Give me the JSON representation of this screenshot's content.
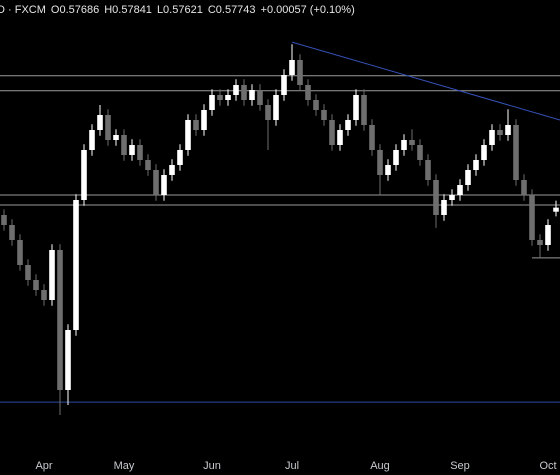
{
  "chart_data": {
    "type": "candlestick",
    "header": {
      "symbol": "D · FXCM",
      "fields": [
        "O0.57686",
        "H0.57841",
        "L0.57621",
        "C0.57743",
        "+0.00057 (+0.10%)"
      ]
    },
    "categories": [
      null,
      null,
      null,
      null,
      null,
      "Apr",
      null,
      null,
      null,
      null,
      null,
      null,
      null,
      null,
      null,
      "May",
      null,
      null,
      null,
      null,
      null,
      null,
      null,
      null,
      null,
      null,
      "Jun",
      null,
      null,
      null,
      null,
      null,
      null,
      null,
      null,
      null,
      "Jul",
      null,
      null,
      null,
      null,
      null,
      null,
      null,
      null,
      null,
      null,
      "Aug",
      null,
      null,
      null,
      null,
      null,
      null,
      null,
      null,
      null,
      "Sep",
      null,
      null,
      null,
      null,
      null,
      null,
      null,
      null,
      null,
      null,
      "Oct",
      null
    ],
    "open": [
      0.5764,
      0.575,
      0.5729,
      0.5694,
      0.5673,
      0.5659,
      0.5645,
      0.5715,
      0.5519,
      0.5603,
      0.5785,
      0.5855,
      0.5883,
      0.5904,
      0.5869,
      0.5876,
      0.5848,
      0.5862,
      0.5841,
      0.5827,
      0.5792,
      0.582,
      0.5834,
      0.5855,
      0.5897,
      0.5883,
      0.5911,
      0.5932,
      0.5925,
      0.5932,
      0.5946,
      0.5925,
      0.5939,
      0.5918,
      0.5897,
      0.5932,
      0.596,
      0.5981,
      0.5946,
      0.5925,
      0.5911,
      0.5897,
      0.5862,
      0.5883,
      0.5897,
      0.5932,
      0.589,
      0.5855,
      0.582,
      0.5834,
      0.5855,
      0.5869,
      0.5862,
      0.5841,
      0.5813,
      0.5764,
      0.5785,
      0.5792,
      0.5806,
      0.5827,
      0.5841,
      0.5862,
      0.5883,
      0.5876,
      0.589,
      0.5813,
      0.5792,
      0.5729,
      0.5722,
      0.57686
    ],
    "high": [
      0.5772,
      0.5758,
      0.5737,
      0.5702,
      0.5681,
      0.5667,
      0.5723,
      0.5723,
      0.5611,
      0.5793,
      0.5863,
      0.5891,
      0.5918,
      0.5912,
      0.5884,
      0.5884,
      0.587,
      0.587,
      0.5849,
      0.5835,
      0.5828,
      0.5842,
      0.5863,
      0.5905,
      0.5905,
      0.5919,
      0.594,
      0.594,
      0.594,
      0.5954,
      0.5954,
      0.5947,
      0.5947,
      0.5926,
      0.594,
      0.5968,
      0.6003,
      0.5989,
      0.5954,
      0.5933,
      0.5919,
      0.5905,
      0.5891,
      0.5905,
      0.594,
      0.594,
      0.5898,
      0.5863,
      0.5842,
      0.5863,
      0.5877,
      0.5884,
      0.587,
      0.5849,
      0.5821,
      0.5793,
      0.58,
      0.5814,
      0.5835,
      0.5849,
      0.587,
      0.5891,
      0.5891,
      0.5912,
      0.5898,
      0.5821,
      0.58,
      0.5737,
      0.5758,
      0.57841
    ],
    "low": [
      0.5742,
      0.5721,
      0.5686,
      0.5665,
      0.5651,
      0.5637,
      0.5637,
      0.5484,
      0.5498,
      0.5595,
      0.5777,
      0.5847,
      0.5875,
      0.5861,
      0.5861,
      0.584,
      0.584,
      0.5833,
      0.5819,
      0.5784,
      0.5784,
      0.5812,
      0.5826,
      0.5847,
      0.5875,
      0.5875,
      0.5903,
      0.5917,
      0.5917,
      0.5924,
      0.5917,
      0.5917,
      0.591,
      0.5855,
      0.5889,
      0.5924,
      0.5952,
      0.5938,
      0.5917,
      0.5903,
      0.5889,
      0.5854,
      0.5854,
      0.5875,
      0.5889,
      0.5882,
      0.5847,
      0.5792,
      0.5812,
      0.5826,
      0.5847,
      0.5854,
      0.5833,
      0.5805,
      0.5746,
      0.5756,
      0.5777,
      0.5784,
      0.5798,
      0.5819,
      0.5833,
      0.5854,
      0.5868,
      0.5868,
      0.5805,
      0.5784,
      0.5721,
      0.5703,
      0.5714,
      0.57621
    ],
    "close": [
      0.575,
      0.5729,
      0.5694,
      0.5673,
      0.5659,
      0.5645,
      0.5715,
      0.5519,
      0.5603,
      0.5785,
      0.5855,
      0.5883,
      0.5904,
      0.5869,
      0.5876,
      0.5848,
      0.5862,
      0.5841,
      0.5827,
      0.5792,
      0.582,
      0.5834,
      0.5855,
      0.5897,
      0.5883,
      0.5911,
      0.5932,
      0.5925,
      0.5932,
      0.5946,
      0.5925,
      0.5939,
      0.5918,
      0.5897,
      0.5932,
      0.596,
      0.5981,
      0.5946,
      0.5925,
      0.5911,
      0.5897,
      0.5862,
      0.5883,
      0.5897,
      0.5932,
      0.589,
      0.5855,
      0.582,
      0.5834,
      0.5855,
      0.5869,
      0.5862,
      0.5841,
      0.5813,
      0.5764,
      0.5785,
      0.5792,
      0.5806,
      0.5827,
      0.5841,
      0.5862,
      0.5883,
      0.5876,
      0.589,
      0.5813,
      0.5792,
      0.5729,
      0.5722,
      0.575,
      0.57743
    ],
    "up_color": "#ffffff",
    "down_color": "#6e6e6e",
    "ylim": [
      0.5428,
      0.6065
    ],
    "hlines": [
      {
        "y": 0.5959,
        "color": "#9a9a9a"
      },
      {
        "y": 0.5938,
        "color": "#9a9a9a"
      },
      {
        "y": 0.5792,
        "color": "#9a9a9a"
      },
      {
        "y": 0.5778,
        "color": "#9a9a9a"
      },
      {
        "y": 0.5502,
        "color": "#2f4aa0"
      }
    ],
    "short_level": {
      "y": 0.5704,
      "x": [
        66,
        69.5
      ],
      "color": "#9a9a9a"
    },
    "trendline": {
      "x": [
        36,
        69.5
      ],
      "y": [
        0.6006,
        0.5897
      ],
      "color": "#3552b8"
    }
  }
}
